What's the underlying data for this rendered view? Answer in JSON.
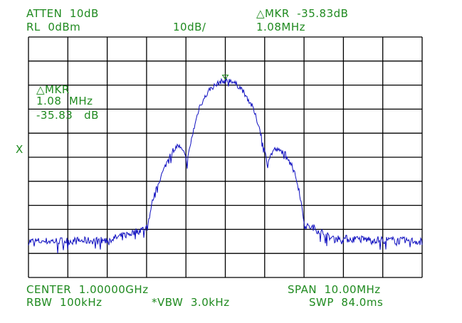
{
  "header": {
    "atten": "ATTEN  10dB",
    "rl": "RL  0dBm",
    "scale": "10dB/",
    "mkr_label": "△MKR  -35.83dB",
    "mkr_freq": "1.08MHz"
  },
  "marker_box": {
    "label": "△MKR",
    "freq": "1.08  MHz",
    "level": "-35.83   dB"
  },
  "side_marker": "X",
  "footer": {
    "center": "CENTER  1.00000GHz",
    "span": "SPAN  10.00MHz",
    "rbw": "RBW  100kHz",
    "vbw": "*VBW  3.0kHz",
    "swp": "SWP  84.0ms"
  },
  "colors": {
    "text": "#1f8a1f",
    "trace": "#1010c0",
    "grid": "#000000",
    "marker": "#1f8a1f"
  },
  "chart_data": {
    "type": "line",
    "x_unit": "MHz offset from center (1.00000 GHz)",
    "y_unit": "dBm",
    "xlim": [
      -5,
      5
    ],
    "ylim": [
      -100,
      0
    ],
    "x_divisions": 10,
    "y_divisions": 10,
    "grid": true,
    "marker": {
      "x": 0.0,
      "y": -17
    },
    "series": [
      {
        "x": [
          -5.0,
          -3.0,
          -2.47,
          -2.1,
          -1.98,
          -1.84,
          -1.65,
          -1.38,
          -1.2,
          -1.06,
          -0.97,
          -0.84,
          -0.66,
          -0.39,
          -0.12,
          0.15,
          0.42,
          0.69,
          0.87,
          1.06,
          1.24,
          1.51,
          1.69,
          1.87,
          2.02,
          2.23,
          2.41,
          2.68,
          5.0
        ],
        "y": [
          -85,
          -84.6,
          -82,
          -80,
          -79,
          -67.5,
          -58.6,
          -48,
          -45,
          -48,
          -52,
          -41,
          -29,
          -21.6,
          -18.6,
          -18,
          -21.6,
          -29,
          -37.9,
          -52,
          -46.7,
          -48,
          -52.7,
          -63,
          -78.7,
          -79.3,
          -80.8,
          -83.7,
          -85
        ]
      }
    ]
  }
}
